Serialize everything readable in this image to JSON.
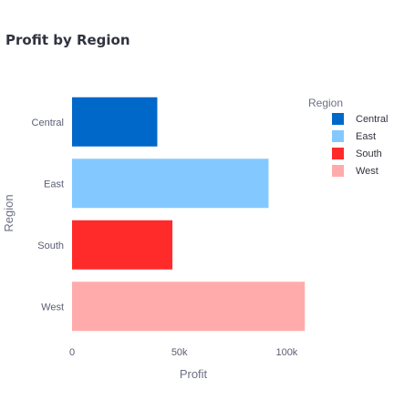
{
  "chart_data": {
    "type": "bar",
    "orientation": "horizontal",
    "title": "Profit by Region",
    "xlabel": "Profit",
    "ylabel": "Region",
    "categories": [
      "Central",
      "East",
      "South",
      "West"
    ],
    "values": [
      39706,
      91523,
      46749,
      108418
    ],
    "colors": [
      "#0068c9",
      "#83c9ff",
      "#ff2b2b",
      "#ffabab"
    ],
    "xlim": [
      0,
      113000
    ],
    "xticks": [
      0,
      50000,
      100000
    ],
    "xtick_labels": [
      "0",
      "50k",
      "100k"
    ],
    "grid": false,
    "legend": {
      "title": "Region",
      "position": "right",
      "entries": [
        "Central",
        "East",
        "South",
        "West"
      ]
    }
  }
}
